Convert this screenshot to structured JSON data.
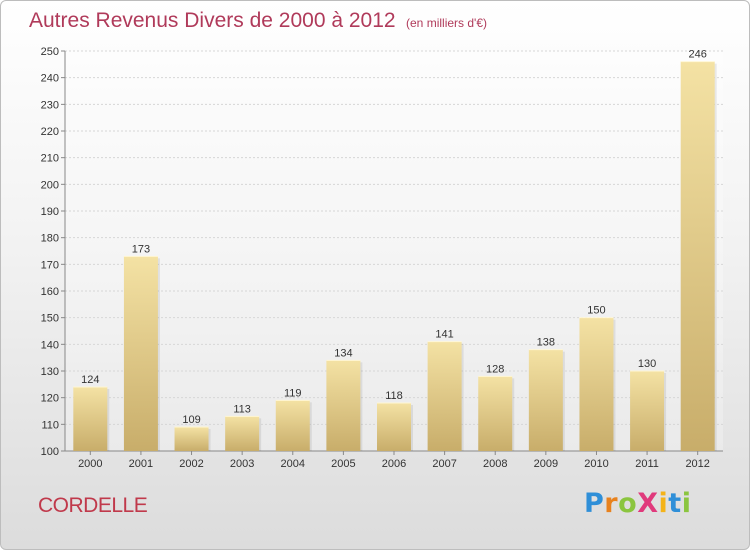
{
  "chart_data": {
    "type": "bar",
    "title": "Autres Revenus Divers de 2000 à 2012",
    "subtitle": "(en milliers d'€)",
    "categories": [
      "2000",
      "2001",
      "2002",
      "2003",
      "2004",
      "2005",
      "2006",
      "2007",
      "2008",
      "2009",
      "2010",
      "2011",
      "2012"
    ],
    "values": [
      124,
      173,
      109,
      113,
      119,
      134,
      118,
      141,
      128,
      138,
      150,
      130,
      246
    ],
    "ylim": [
      100,
      250
    ],
    "yticks": [
      100,
      110,
      120,
      130,
      140,
      150,
      160,
      170,
      180,
      190,
      200,
      210,
      220,
      230,
      240,
      250
    ],
    "grid": true,
    "bar_color_light": "#f4e2a4",
    "bar_color_dark": "#c8ad6a"
  },
  "footer": {
    "commune": "CORDELLE",
    "logo_text": "ProXiti",
    "logo_letters": [
      "P",
      "r",
      "o",
      "X",
      "i",
      "t",
      "i"
    ],
    "logo_colors": [
      "#2f8fd8",
      "#e8821e",
      "#8bc53f",
      "#e03a7c",
      "#f4b318",
      "#2f8fd8",
      "#8bc53f"
    ]
  }
}
